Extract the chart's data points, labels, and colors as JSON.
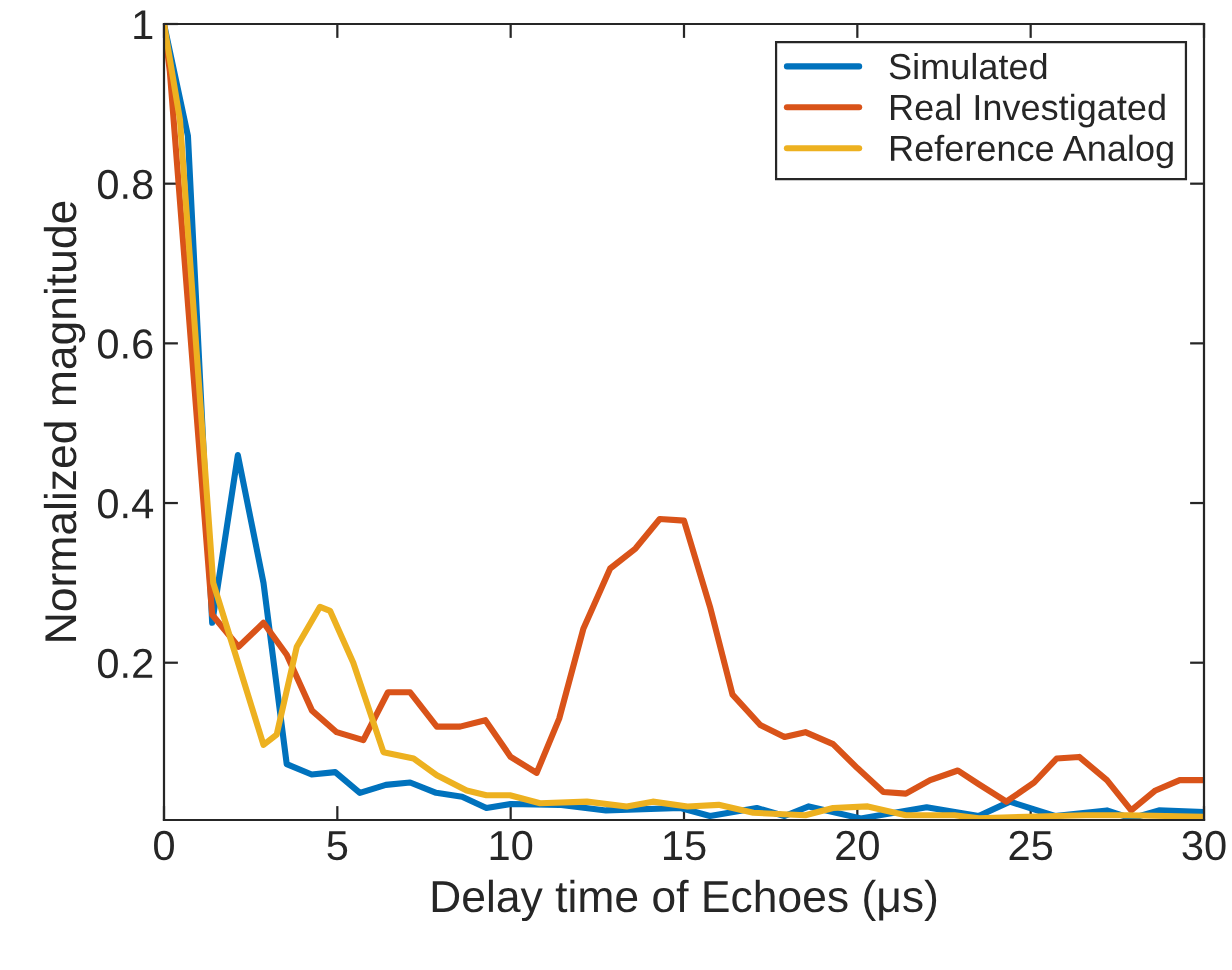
{
  "chart_data": {
    "type": "line",
    "xlabel": "Delay time of Echoes (μs)",
    "ylabel": "Normalized magnitude",
    "xlim": [
      0,
      30
    ],
    "ylim": [
      0.003,
      1
    ],
    "xticks": [
      0,
      5,
      10,
      15,
      20,
      25,
      30
    ],
    "yticks": [
      0.2,
      0.4,
      0.6,
      0.8,
      {
        "value": 1,
        "label": "1"
      }
    ],
    "grid": false,
    "legend": "top right",
    "marker": "none",
    "line_style": "solid",
    "series": [
      {
        "name": "Simulated",
        "color": "#0072bd",
        "x": [
          0,
          0.69,
          1.39,
          2.13,
          2.87,
          3.54,
          4.26,
          4.94,
          5.65,
          6.4,
          7.1,
          7.85,
          8.6,
          9.3,
          10,
          11.4,
          12.75,
          14.9,
          15.75,
          17.1,
          17.9,
          18.6,
          20.1,
          22,
          23.5,
          24.4,
          25.7,
          27.2,
          27.9,
          28.7,
          30
        ],
        "values": [
          1,
          0.86,
          0.25,
          0.46,
          0.3,
          0.073,
          0.06,
          0.063,
          0.037,
          0.047,
          0.05,
          0.037,
          0.032,
          0.018,
          0.023,
          0.022,
          0.015,
          0.018,
          0.008,
          0.018,
          0.008,
          0.02,
          0.005,
          0.019,
          0.008,
          0.026,
          0.008,
          0.015,
          0.005,
          0.015,
          0.013
        ]
      },
      {
        "name": "Real Investigated",
        "color": "#d95319",
        "x": [
          0,
          0.17,
          1.39,
          2.15,
          2.87,
          3.54,
          4.27,
          4.98,
          5.75,
          6.46,
          7.1,
          7.87,
          8.54,
          9.27,
          10,
          10.75,
          11.4,
          12.1,
          12.87,
          13.6,
          14.3,
          15,
          15.75,
          16.4,
          17.2,
          17.9,
          18.5,
          19.3,
          20,
          20.75,
          21.4,
          22.1,
          22.9,
          23.5,
          24.3,
          25.1,
          25.75,
          26.4,
          27.2,
          27.9,
          28.6,
          29.3,
          30
        ],
        "values": [
          1,
          0.94,
          0.26,
          0.22,
          0.25,
          0.21,
          0.14,
          0.113,
          0.103,
          0.163,
          0.163,
          0.12,
          0.12,
          0.128,
          0.082,
          0.062,
          0.13,
          0.243,
          0.318,
          0.343,
          0.38,
          0.378,
          0.27,
          0.16,
          0.122,
          0.107,
          0.113,
          0.098,
          0.068,
          0.038,
          0.036,
          0.053,
          0.065,
          0.048,
          0.026,
          0.05,
          0.08,
          0.082,
          0.053,
          0.015,
          0.04,
          0.053,
          0.053
        ]
      },
      {
        "name": "Reference Analog",
        "color": "#edb120",
        "x": [
          0,
          0.46,
          1.42,
          2.1,
          2.87,
          3.25,
          3.83,
          4.5,
          4.79,
          5.46,
          6.33,
          7.2,
          7.87,
          8.73,
          9.3,
          9.98,
          10.85,
          12.2,
          13.35,
          14.1,
          15.1,
          16,
          17,
          18.5,
          19.3,
          20.3,
          21.4,
          22.8,
          23.5,
          24.9,
          26.6,
          27.8,
          30
        ],
        "values": [
          1,
          0.88,
          0.3,
          0.205,
          0.097,
          0.11,
          0.22,
          0.27,
          0.265,
          0.2,
          0.088,
          0.08,
          0.059,
          0.04,
          0.034,
          0.034,
          0.024,
          0.026,
          0.02,
          0.026,
          0.02,
          0.022,
          0.012,
          0.009,
          0.018,
          0.02,
          0.009,
          0.009,
          0.005,
          0.007,
          0.009,
          0.009,
          0.007
        ]
      }
    ]
  }
}
